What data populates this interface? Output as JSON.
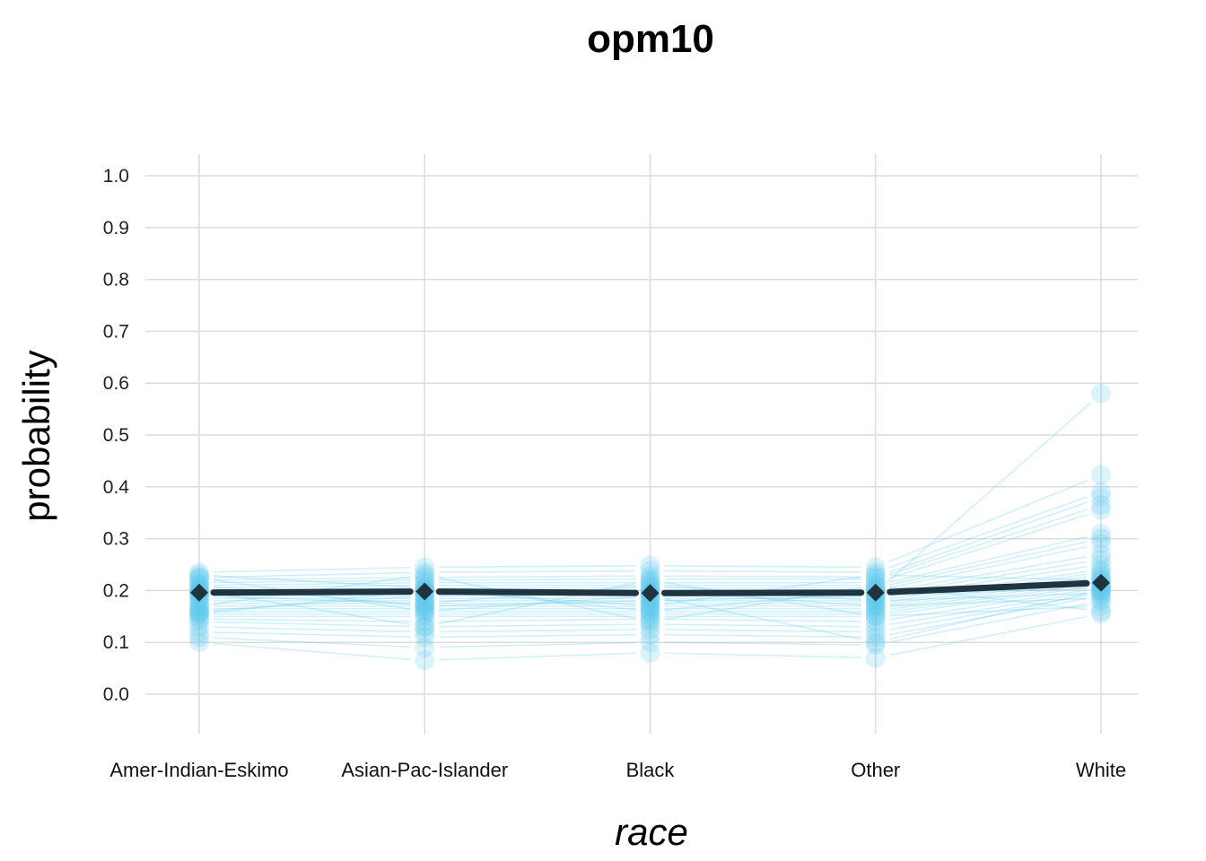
{
  "chart_data": {
    "type": "line",
    "title": "opm10",
    "xlabel": "race",
    "ylabel": "probability",
    "categories": [
      "Amer-Indian-Eskimo",
      "Asian-Pac-Islander",
      "Black",
      "Other",
      "White"
    ],
    "ylim": [
      0.0,
      1.0
    ],
    "yticks": [
      "0.0",
      "0.1",
      "0.2",
      "0.3",
      "0.4",
      "0.5",
      "0.6",
      "0.7",
      "0.8",
      "0.9",
      "1.0"
    ],
    "grid": true,
    "legend": "none",
    "average": {
      "name": "",
      "values": [
        0.196,
        0.198,
        0.195,
        0.196,
        0.215
      ],
      "color": "#1f3340"
    },
    "individual_color": "#5bc8ec",
    "individual": [
      [
        0.196,
        0.198,
        0.195,
        0.196,
        0.58
      ],
      [
        0.235,
        0.245,
        0.248,
        0.245,
        0.423
      ],
      [
        0.225,
        0.235,
        0.238,
        0.235,
        0.39
      ],
      [
        0.22,
        0.225,
        0.228,
        0.226,
        0.38
      ],
      [
        0.215,
        0.22,
        0.222,
        0.222,
        0.365
      ],
      [
        0.21,
        0.215,
        0.215,
        0.215,
        0.355
      ],
      [
        0.205,
        0.21,
        0.21,
        0.21,
        0.31
      ],
      [
        0.2,
        0.205,
        0.205,
        0.205,
        0.3
      ],
      [
        0.198,
        0.2,
        0.2,
        0.2,
        0.29
      ],
      [
        0.195,
        0.195,
        0.195,
        0.195,
        0.27
      ],
      [
        0.19,
        0.19,
        0.19,
        0.19,
        0.26
      ],
      [
        0.185,
        0.185,
        0.185,
        0.185,
        0.25
      ],
      [
        0.18,
        0.18,
        0.18,
        0.18,
        0.24
      ],
      [
        0.175,
        0.175,
        0.175,
        0.175,
        0.235
      ],
      [
        0.17,
        0.17,
        0.17,
        0.17,
        0.23
      ],
      [
        0.165,
        0.165,
        0.165,
        0.165,
        0.225
      ],
      [
        0.16,
        0.16,
        0.16,
        0.16,
        0.22
      ],
      [
        0.155,
        0.155,
        0.155,
        0.155,
        0.215
      ],
      [
        0.15,
        0.15,
        0.15,
        0.15,
        0.21
      ],
      [
        0.145,
        0.14,
        0.145,
        0.14,
        0.205
      ],
      [
        0.14,
        0.13,
        0.135,
        0.13,
        0.2
      ],
      [
        0.13,
        0.12,
        0.125,
        0.12,
        0.195
      ],
      [
        0.12,
        0.11,
        0.115,
        0.11,
        0.19
      ],
      [
        0.11,
        0.09,
        0.1,
        0.095,
        0.18
      ],
      [
        0.1,
        0.065,
        0.08,
        0.07,
        0.155
      ],
      [
        0.2,
        0.13,
        0.22,
        0.15,
        0.17
      ],
      [
        0.17,
        0.23,
        0.14,
        0.21,
        0.16
      ],
      [
        0.225,
        0.16,
        0.19,
        0.1,
        0.2
      ],
      [
        0.155,
        0.2,
        0.17,
        0.23,
        0.22
      ],
      [
        0.19,
        0.175,
        0.21,
        0.18,
        0.195
      ],
      [
        0.23,
        0.205,
        0.16,
        0.2,
        0.21
      ],
      [
        0.16,
        0.19,
        0.2,
        0.17,
        0.185
      ],
      [
        0.21,
        0.17,
        0.18,
        0.19,
        0.205
      ]
    ]
  }
}
